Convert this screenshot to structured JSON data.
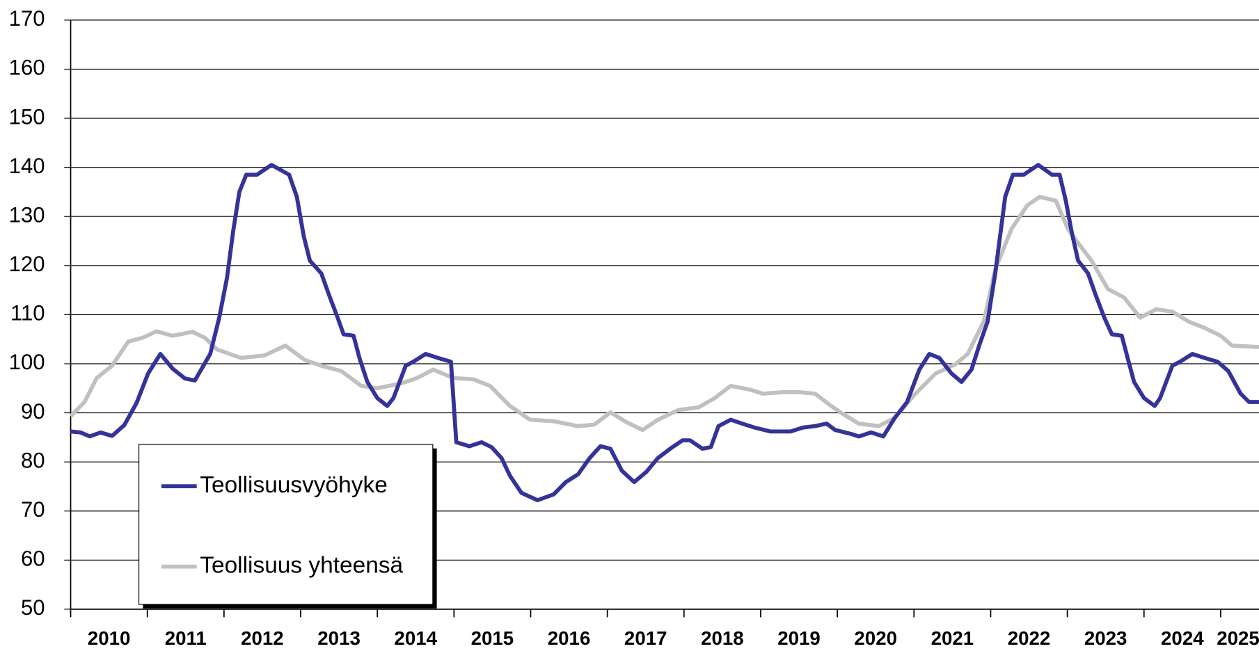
{
  "chart_data": {
    "type": "line",
    "ylim": [
      50,
      170
    ],
    "yticks": [
      50,
      60,
      70,
      80,
      90,
      100,
      110,
      120,
      130,
      140,
      150,
      160,
      170
    ],
    "grid": true,
    "xlim": [
      2010,
      2025.5
    ],
    "xticks": [
      2010,
      2011,
      2012,
      2013,
      2014,
      2015,
      2016,
      2017,
      2018,
      2019,
      2020,
      2021,
      2022,
      2023,
      2024,
      2025
    ],
    "legend": "lower left",
    "series": [
      {
        "name": "Teollisuusvyöhyke",
        "color": "#33339a",
        "x": [
          2010.0,
          2010.13,
          2010.25,
          2010.39,
          2010.54,
          2010.7,
          2010.86,
          2011.01,
          2011.17,
          2011.33,
          2011.49,
          2011.62,
          2011.82,
          2011.94,
          2012.04,
          2012.12,
          2012.2,
          2012.29,
          2012.43,
          2012.62,
          2012.85,
          2012.95,
          2013.04,
          2013.12,
          2013.27,
          2013.37,
          2013.48,
          2013.56,
          2013.69,
          2013.77,
          2013.87,
          2014.0,
          2014.13,
          2014.21,
          2014.37,
          2014.47,
          2014.63,
          2014.79,
          2014.96,
          2015.03,
          2015.2,
          2015.36,
          2015.49,
          2015.62,
          2015.73,
          2015.88,
          2016.09,
          2016.3,
          2016.46,
          2016.62,
          2016.77,
          2016.91,
          2017.04,
          2017.19,
          2017.35,
          2017.51,
          2017.66,
          2017.82,
          2017.98,
          2018.08,
          2018.24,
          2018.35,
          2018.45,
          2018.61,
          2018.76,
          2018.92,
          2019.13,
          2019.39,
          2019.55,
          2019.71,
          2019.86,
          2019.97,
          2020.18,
          2020.28,
          2020.44,
          2020.6,
          2020.75,
          2020.91,
          2021.07,
          2021.2,
          2021.33,
          2021.49,
          2021.62,
          2021.75,
          2021.85,
          2021.96,
          2022.06,
          2022.19,
          2022.29,
          2022.43,
          2022.62,
          2022.8,
          2022.9,
          2022.98,
          2023.06,
          2023.14,
          2023.27,
          2023.37,
          2023.48,
          2023.58,
          2023.71,
          2023.79,
          2023.87,
          2024.0,
          2024.14,
          2024.21,
          2024.37,
          2024.47,
          2024.63,
          2024.79,
          2024.96,
          2025.1,
          2025.26,
          2025.37,
          2025.5
        ],
        "values": [
          86.2,
          86,
          85.2,
          86,
          85.3,
          87.5,
          92,
          98,
          102,
          99,
          97,
          96.6,
          102,
          109.5,
          117.6,
          127,
          135,
          138.5,
          138.5,
          140.5,
          138.5,
          134,
          126,
          121,
          118.4,
          114,
          109.5,
          106,
          105.7,
          101,
          96.3,
          93,
          91.4,
          93,
          99.6,
          100.4,
          102,
          101.2,
          100.4,
          84,
          83.2,
          84,
          83,
          80.8,
          77.2,
          73.7,
          72.2,
          73.4,
          75.9,
          77.5,
          80.8,
          83.2,
          82.7,
          78.2,
          75.9,
          78,
          80.8,
          82.7,
          84.4,
          84.4,
          82.7,
          83,
          87.3,
          88.6,
          87.8,
          87,
          86.2,
          86.2,
          87,
          87.3,
          87.8,
          86.5,
          85.7,
          85.2,
          86,
          85.2,
          89,
          92.2,
          98.8,
          102,
          101.2,
          98,
          96.3,
          98.8,
          103.7,
          108.6,
          118.4,
          134,
          138.5,
          138.5,
          140.5,
          138.5,
          138.5,
          133.2,
          126.6,
          121,
          118.4,
          114,
          109.5,
          106,
          105.7,
          101,
          96.3,
          93,
          91.4,
          93,
          99.6,
          100.4,
          102,
          101.2,
          100.4,
          98.5,
          93.9,
          92.2,
          92.2
        ]
      },
      {
        "name": "Teollisuus yhteensä",
        "color": "#c0c0c0",
        "x": [
          2010.0,
          2010.18,
          2010.34,
          2010.54,
          2010.75,
          2010.94,
          2011.12,
          2011.33,
          2011.59,
          2011.75,
          2011.91,
          2012.22,
          2012.53,
          2012.8,
          2013.06,
          2013.27,
          2013.53,
          2013.79,
          2014.0,
          2014.31,
          2014.52,
          2014.73,
          2014.99,
          2015.26,
          2015.47,
          2015.73,
          2015.99,
          2016.3,
          2016.62,
          2016.83,
          2017.04,
          2017.25,
          2017.46,
          2017.66,
          2017.93,
          2018.19,
          2018.4,
          2018.61,
          2018.87,
          2019.03,
          2019.29,
          2019.5,
          2019.71,
          2019.92,
          2020.07,
          2020.28,
          2020.54,
          2020.75,
          2021.02,
          2021.28,
          2021.54,
          2021.7,
          2021.91,
          2022.06,
          2022.27,
          2022.48,
          2022.64,
          2022.85,
          2023.01,
          2023.16,
          2023.32,
          2023.53,
          2023.74,
          2023.95,
          2024.16,
          2024.37,
          2024.58,
          2024.79,
          2025.0,
          2025.15,
          2025.5
        ],
        "values": [
          89.3,
          92.2,
          97.1,
          99.6,
          104.5,
          105.3,
          106.6,
          105.7,
          106.5,
          105.3,
          102.9,
          101.2,
          101.7,
          103.7,
          100.7,
          99.6,
          98.5,
          95.5,
          95,
          96,
          97.1,
          98.8,
          97.1,
          96.8,
          95.5,
          91.4,
          88.6,
          88.3,
          87.3,
          87.6,
          90.1,
          88.1,
          86.5,
          88.6,
          90.6,
          91.1,
          93,
          95.5,
          94.7,
          93.9,
          94.2,
          94.2,
          93.9,
          91.4,
          89.8,
          87.8,
          87.3,
          89,
          93.9,
          98,
          99.9,
          102,
          108.6,
          119.2,
          127.4,
          132.3,
          134,
          133.2,
          127.4,
          124.2,
          120.9,
          115.2,
          113.5,
          109.4,
          111.1,
          110.6,
          108.6,
          107.3,
          105.7,
          103.7,
          103.4
        ]
      }
    ]
  }
}
